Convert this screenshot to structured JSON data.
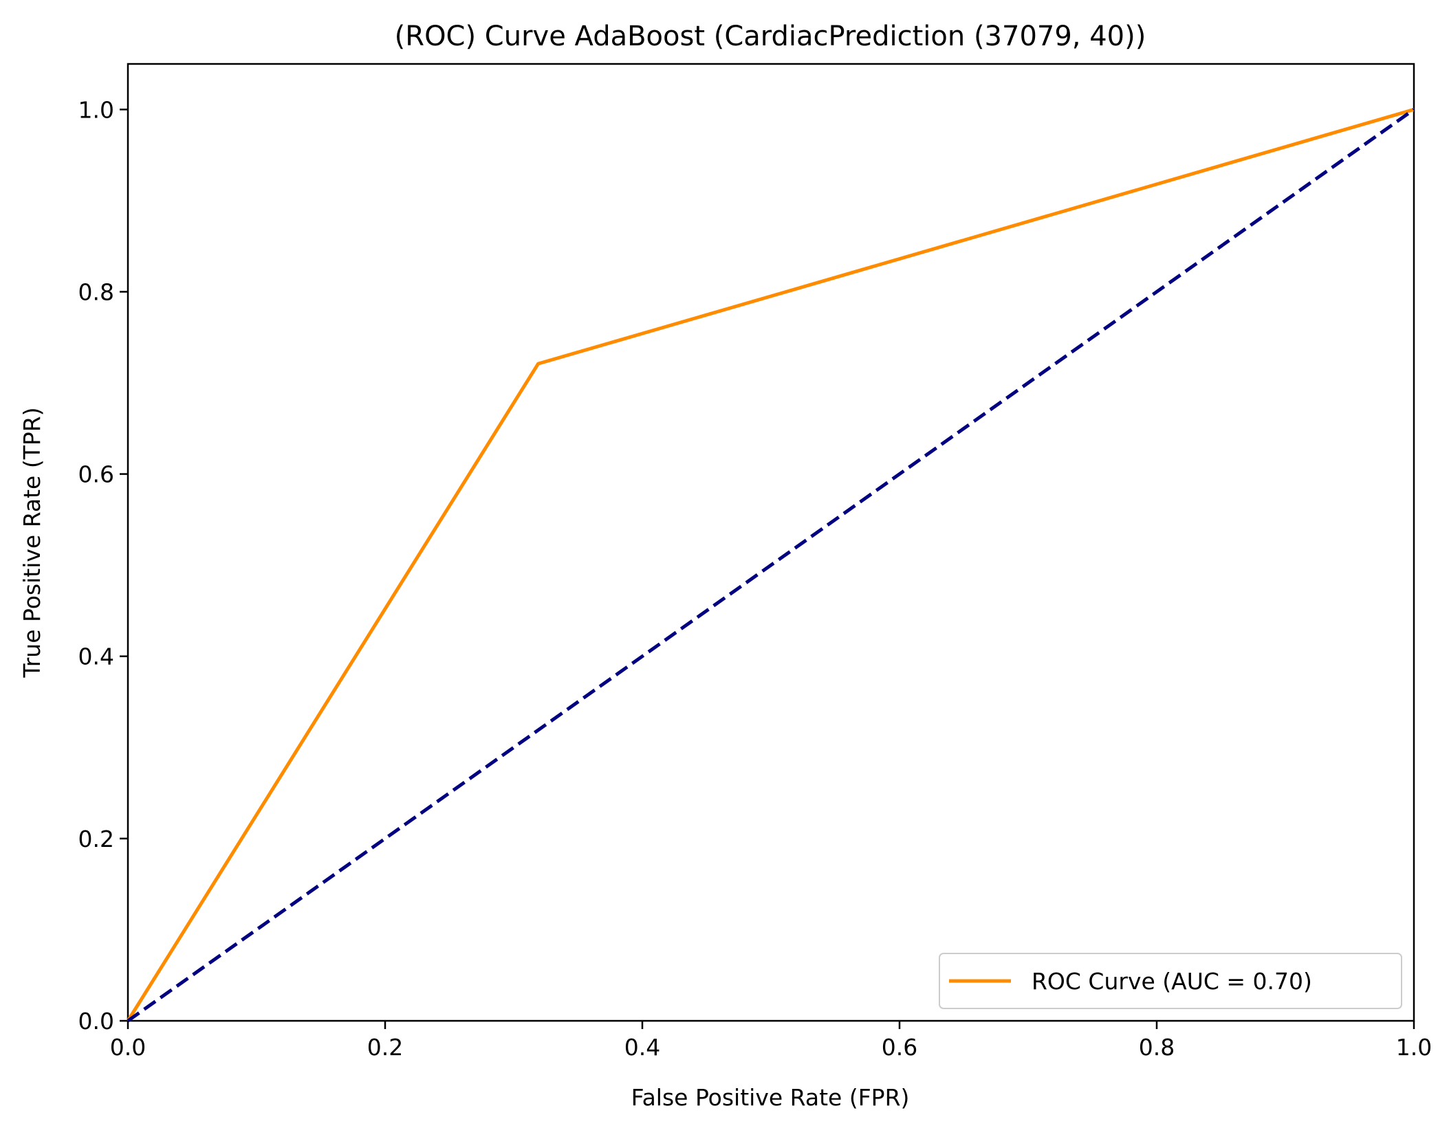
{
  "chart_data": {
    "type": "line",
    "title": "(ROC) Curve AdaBoost (CardiacPrediction (37079, 40))",
    "xlabel": "False Positive Rate (FPR)",
    "ylabel": "True Positive Rate (TPR)",
    "xlim": [
      0.0,
      1.05
    ],
    "ylim": [
      0.0,
      1.05
    ],
    "xlim_display": [
      0.0,
      1.0
    ],
    "xticks": [
      "0.0",
      "0.2",
      "0.4",
      "0.6",
      "0.8",
      "1.0"
    ],
    "yticks": [
      "0.0",
      "0.2",
      "0.4",
      "0.6",
      "0.8",
      "1.0"
    ],
    "grid": false,
    "legend_position": "lower-right",
    "series": [
      {
        "name": "ROC Curve (AUC = 0.70)",
        "color": "#ff8c00",
        "style": "solid",
        "x": [
          0.0,
          0.319,
          1.0
        ],
        "y": [
          0.0,
          0.721,
          1.0
        ]
      },
      {
        "color": "#000080",
        "style": "dashed",
        "x": [
          0.0,
          1.0
        ],
        "y": [
          0.0,
          1.0
        ]
      }
    ]
  }
}
